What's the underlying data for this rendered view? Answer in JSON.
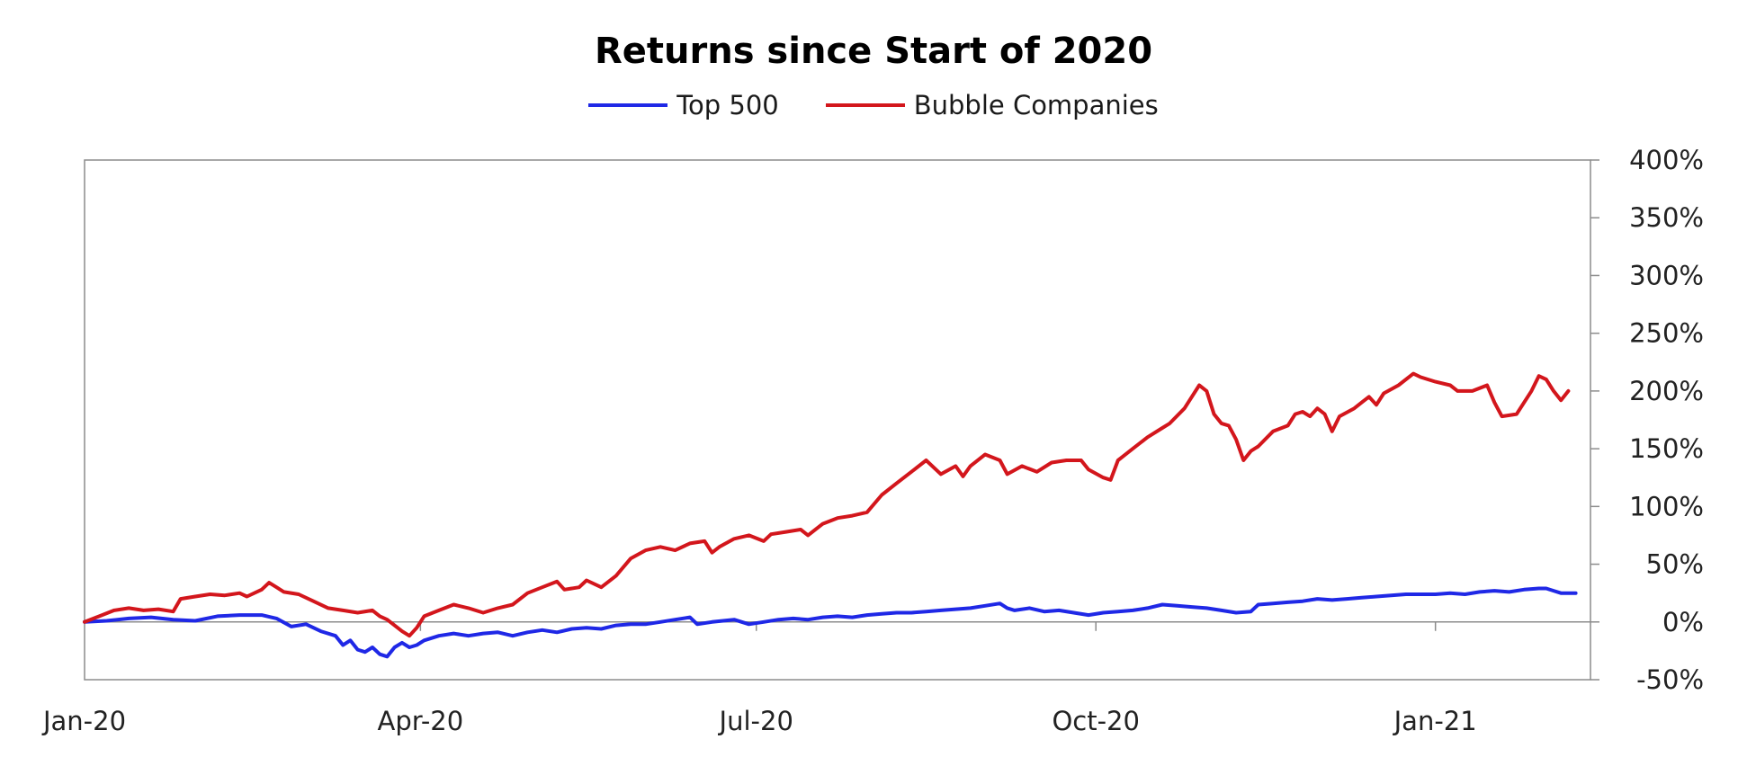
{
  "chart_data": {
    "type": "line",
    "title": "Returns since Start of 2020",
    "xlabel": "",
    "ylabel": "",
    "x_tick_labels": [
      "Jan-20",
      "Apr-20",
      "Jul-20",
      "Oct-20",
      "Jan-21"
    ],
    "x_tick_days": [
      0,
      91,
      182,
      274,
      366
    ],
    "x_range_days": [
      0,
      408
    ],
    "y_tick_labels": [
      "400%",
      "350%",
      "300%",
      "250%",
      "200%",
      "150%",
      "100%",
      "50%",
      "0%",
      "-50%"
    ],
    "y_tick_values": [
      400,
      350,
      300,
      250,
      200,
      150,
      100,
      50,
      0,
      -50
    ],
    "ylim": [
      -50,
      400
    ],
    "legend_position": "top-center",
    "grid": false,
    "colors": {
      "top500": "#1f28e6",
      "bubble": "#d3161c",
      "axis": "#8c8c8c"
    },
    "series": [
      {
        "name": "Top 500",
        "color": "#1f28e6",
        "points": [
          [
            0,
            0
          ],
          [
            6,
            1
          ],
          [
            12,
            3
          ],
          [
            18,
            4
          ],
          [
            24,
            2
          ],
          [
            30,
            1
          ],
          [
            36,
            5
          ],
          [
            42,
            6
          ],
          [
            48,
            6
          ],
          [
            52,
            3
          ],
          [
            56,
            -4
          ],
          [
            60,
            -2
          ],
          [
            64,
            -8
          ],
          [
            68,
            -12
          ],
          [
            70,
            -20
          ],
          [
            72,
            -16
          ],
          [
            74,
            -24
          ],
          [
            76,
            -26
          ],
          [
            78,
            -22
          ],
          [
            80,
            -28
          ],
          [
            82,
            -30
          ],
          [
            84,
            -22
          ],
          [
            86,
            -18
          ],
          [
            88,
            -22
          ],
          [
            90,
            -20
          ],
          [
            92,
            -16
          ],
          [
            96,
            -12
          ],
          [
            100,
            -10
          ],
          [
            104,
            -12
          ],
          [
            108,
            -10
          ],
          [
            112,
            -9
          ],
          [
            116,
            -12
          ],
          [
            120,
            -9
          ],
          [
            124,
            -7
          ],
          [
            128,
            -9
          ],
          [
            132,
            -6
          ],
          [
            136,
            -5
          ],
          [
            140,
            -6
          ],
          [
            144,
            -3
          ],
          [
            148,
            -2
          ],
          [
            152,
            -2
          ],
          [
            156,
            0
          ],
          [
            160,
            2
          ],
          [
            164,
            4
          ],
          [
            166,
            -2
          ],
          [
            170,
            0
          ],
          [
            176,
            2
          ],
          [
            180,
            -2
          ],
          [
            184,
            0
          ],
          [
            188,
            2
          ],
          [
            192,
            3
          ],
          [
            196,
            2
          ],
          [
            200,
            4
          ],
          [
            204,
            5
          ],
          [
            208,
            4
          ],
          [
            212,
            6
          ],
          [
            216,
            7
          ],
          [
            220,
            8
          ],
          [
            224,
            8
          ],
          [
            228,
            9
          ],
          [
            232,
            10
          ],
          [
            236,
            11
          ],
          [
            240,
            12
          ],
          [
            244,
            14
          ],
          [
            248,
            16
          ],
          [
            250,
            12
          ],
          [
            252,
            10
          ],
          [
            256,
            12
          ],
          [
            260,
            9
          ],
          [
            264,
            10
          ],
          [
            268,
            8
          ],
          [
            272,
            6
          ],
          [
            276,
            8
          ],
          [
            280,
            9
          ],
          [
            284,
            10
          ],
          [
            288,
            12
          ],
          [
            292,
            15
          ],
          [
            296,
            14
          ],
          [
            300,
            13
          ],
          [
            304,
            12
          ],
          [
            308,
            10
          ],
          [
            312,
            8
          ],
          [
            316,
            9
          ],
          [
            318,
            15
          ],
          [
            322,
            16
          ],
          [
            326,
            17
          ],
          [
            330,
            18
          ],
          [
            334,
            20
          ],
          [
            338,
            19
          ],
          [
            342,
            20
          ],
          [
            346,
            21
          ],
          [
            350,
            22
          ],
          [
            354,
            23
          ],
          [
            358,
            24
          ],
          [
            362,
            24
          ],
          [
            366,
            24
          ],
          [
            370,
            25
          ],
          [
            374,
            24
          ],
          [
            378,
            26
          ],
          [
            382,
            27
          ],
          [
            386,
            26
          ],
          [
            390,
            28
          ],
          [
            394,
            29
          ],
          [
            396,
            29
          ],
          [
            398,
            27
          ],
          [
            400,
            25
          ],
          [
            404,
            25
          ]
        ]
      },
      {
        "name": "Bubble Companies",
        "color": "#d3161c",
        "points": [
          [
            0,
            0
          ],
          [
            4,
            5
          ],
          [
            8,
            10
          ],
          [
            12,
            12
          ],
          [
            16,
            10
          ],
          [
            20,
            11
          ],
          [
            24,
            9
          ],
          [
            26,
            20
          ],
          [
            30,
            22
          ],
          [
            34,
            24
          ],
          [
            38,
            23
          ],
          [
            42,
            25
          ],
          [
            44,
            22
          ],
          [
            48,
            28
          ],
          [
            50,
            34
          ],
          [
            52,
            30
          ],
          [
            54,
            26
          ],
          [
            58,
            24
          ],
          [
            62,
            18
          ],
          [
            66,
            12
          ],
          [
            70,
            10
          ],
          [
            74,
            8
          ],
          [
            78,
            10
          ],
          [
            80,
            5
          ],
          [
            82,
            2
          ],
          [
            84,
            -3
          ],
          [
            86,
            -8
          ],
          [
            88,
            -12
          ],
          [
            90,
            -5
          ],
          [
            92,
            5
          ],
          [
            96,
            10
          ],
          [
            100,
            15
          ],
          [
            104,
            12
          ],
          [
            108,
            8
          ],
          [
            112,
            12
          ],
          [
            116,
            15
          ],
          [
            120,
            25
          ],
          [
            124,
            30
          ],
          [
            128,
            35
          ],
          [
            130,
            28
          ],
          [
            134,
            30
          ],
          [
            136,
            36
          ],
          [
            140,
            30
          ],
          [
            144,
            40
          ],
          [
            148,
            55
          ],
          [
            152,
            62
          ],
          [
            156,
            65
          ],
          [
            160,
            62
          ],
          [
            164,
            68
          ],
          [
            168,
            70
          ],
          [
            170,
            60
          ],
          [
            172,
            65
          ],
          [
            176,
            72
          ],
          [
            180,
            75
          ],
          [
            184,
            70
          ],
          [
            186,
            76
          ],
          [
            190,
            78
          ],
          [
            194,
            80
          ],
          [
            196,
            75
          ],
          [
            200,
            85
          ],
          [
            204,
            90
          ],
          [
            208,
            92
          ],
          [
            212,
            95
          ],
          [
            216,
            110
          ],
          [
            220,
            120
          ],
          [
            224,
            130
          ],
          [
            228,
            140
          ],
          [
            232,
            128
          ],
          [
            236,
            135
          ],
          [
            238,
            126
          ],
          [
            240,
            135
          ],
          [
            244,
            145
          ],
          [
            248,
            140
          ],
          [
            250,
            128
          ],
          [
            254,
            135
          ],
          [
            258,
            130
          ],
          [
            262,
            138
          ],
          [
            266,
            140
          ],
          [
            270,
            140
          ],
          [
            272,
            132
          ],
          [
            276,
            125
          ],
          [
            278,
            123
          ],
          [
            280,
            140
          ],
          [
            284,
            150
          ],
          [
            288,
            160
          ],
          [
            292,
            168
          ],
          [
            294,
            172
          ],
          [
            298,
            185
          ],
          [
            300,
            195
          ],
          [
            302,
            205
          ],
          [
            304,
            200
          ],
          [
            306,
            180
          ],
          [
            308,
            172
          ],
          [
            310,
            170
          ],
          [
            312,
            158
          ],
          [
            314,
            140
          ],
          [
            316,
            148
          ],
          [
            318,
            152
          ],
          [
            322,
            165
          ],
          [
            326,
            170
          ],
          [
            328,
            180
          ],
          [
            330,
            182
          ],
          [
            332,
            178
          ],
          [
            334,
            185
          ],
          [
            336,
            180
          ],
          [
            338,
            165
          ],
          [
            340,
            178
          ],
          [
            344,
            185
          ],
          [
            346,
            190
          ],
          [
            348,
            195
          ],
          [
            350,
            188
          ],
          [
            352,
            198
          ],
          [
            356,
            205
          ],
          [
            360,
            215
          ],
          [
            362,
            212
          ],
          [
            366,
            208
          ],
          [
            370,
            205
          ],
          [
            372,
            200
          ],
          [
            376,
            200
          ],
          [
            380,
            205
          ],
          [
            382,
            190
          ],
          [
            384,
            178
          ],
          [
            388,
            180
          ],
          [
            392,
            200
          ],
          [
            394,
            213
          ],
          [
            396,
            210
          ],
          [
            398,
            200
          ],
          [
            400,
            192
          ],
          [
            402,
            200
          ]
        ]
      }
    ]
  }
}
